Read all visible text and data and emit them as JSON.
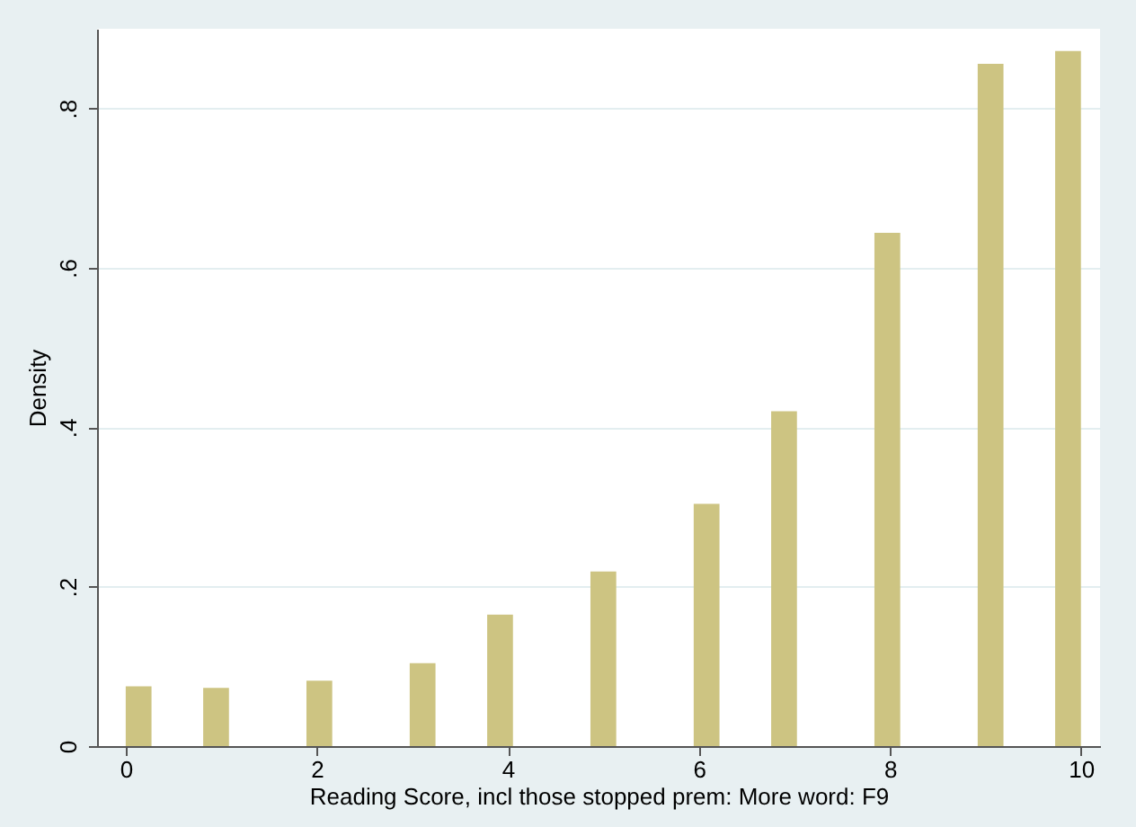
{
  "chart_data": {
    "type": "histogram",
    "xlabel": "Reading Score, incl those stopped prem: More word: F9",
    "ylabel": "Density",
    "bins": [
      0,
      0.27,
      0.541,
      0.811,
      1.081,
      1.351,
      1.622,
      1.892,
      2.162,
      2.432,
      2.703,
      2.973,
      3.243,
      3.514,
      3.784,
      4.054,
      4.324,
      4.595,
      4.865,
      5.135,
      5.405,
      5.676,
      5.946,
      6.216,
      6.486,
      6.757,
      7.027,
      7.297,
      7.568,
      7.838,
      8.108,
      8.378,
      8.649,
      8.919,
      9.189,
      9.459,
      9.73,
      10
    ],
    "values": [
      0.075,
      0,
      0,
      0.073,
      0,
      0,
      0,
      0.082,
      0,
      0,
      0,
      0.104,
      0,
      0,
      0.165,
      0,
      0,
      0,
      0.219,
      0,
      0,
      0,
      0.304,
      0,
      0,
      0.42,
      0,
      0,
      0,
      0.644,
      0,
      0,
      0,
      0.856,
      0,
      0,
      0.872
    ],
    "color": "#cdc482",
    "xlim": [
      -0.3,
      10.2
    ],
    "ylim": [
      0,
      0.9
    ],
    "xticks": [
      0,
      2,
      4,
      6,
      8,
      10
    ],
    "yticks": [
      0,
      {
        "value": 0.2,
        "label": ".2"
      },
      {
        "value": 0.4,
        "label": ".4"
      },
      {
        "value": 0.6,
        "label": ".6"
      },
      {
        "value": 0.8,
        "label": ".8"
      }
    ],
    "grid": "y"
  }
}
